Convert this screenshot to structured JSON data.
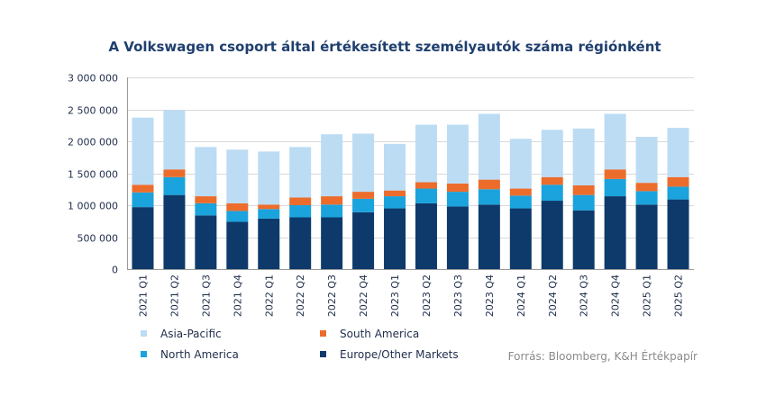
{
  "chart_data": {
    "type": "bar",
    "stacked": true,
    "title": "A Volkswagen csoport által értékesített személyautók száma régiónként",
    "categories": [
      "2021 Q1",
      "2021 Q2",
      "2021 Q3",
      "2021 Q4",
      "2022 Q1",
      "2022 Q2",
      "2022 Q3",
      "2022 Q4",
      "2023 Q1",
      "2023 Q2",
      "2023 Q3",
      "2023 Q4",
      "2024 Q1",
      "2024 Q2",
      "2024 Q3",
      "2024 Q4",
      "2025 Q1",
      "2025 Q2"
    ],
    "yticks": [
      {
        "value": 0,
        "label": "0"
      },
      {
        "value": 500000,
        "label": "500 000"
      },
      {
        "value": 1000000,
        "label": "1 000 000"
      },
      {
        "value": 1500000,
        "label": "1 500 000"
      },
      {
        "value": 2000000,
        "label": "2 000 000"
      },
      {
        "value": 2500000,
        "label": "2 500 000"
      },
      {
        "value": 3000000,
        "label": "3 000 000"
      }
    ],
    "ylim": [
      0,
      3000000
    ],
    "grid": true,
    "series": [
      {
        "name": "Europe/Other Markets",
        "color": "#0d3a6b",
        "values": [
          970000,
          1160000,
          840000,
          740000,
          790000,
          810000,
          810000,
          890000,
          950000,
          1030000,
          980000,
          1010000,
          950000,
          1070000,
          920000,
          1140000,
          1010000,
          1090000
        ]
      },
      {
        "name": "North America",
        "color": "#1aa3dc",
        "values": [
          230000,
          280000,
          190000,
          170000,
          150000,
          190000,
          200000,
          210000,
          190000,
          230000,
          230000,
          240000,
          200000,
          250000,
          240000,
          270000,
          210000,
          200000
        ]
      },
      {
        "name": "South America",
        "color": "#ec6c2c",
        "values": [
          120000,
          120000,
          110000,
          120000,
          70000,
          120000,
          130000,
          110000,
          90000,
          100000,
          130000,
          150000,
          110000,
          120000,
          150000,
          150000,
          130000,
          150000
        ]
      },
      {
        "name": "Asia-Pacific",
        "color": "#bcdcf4",
        "values": [
          1050000,
          930000,
          770000,
          840000,
          830000,
          790000,
          970000,
          910000,
          730000,
          900000,
          920000,
          1030000,
          780000,
          740000,
          890000,
          870000,
          720000,
          770000
        ]
      }
    ],
    "legend": {
      "placement": "bottom",
      "order": [
        "Asia-Pacific",
        "South America",
        "North America",
        "Europe/Other Markets"
      ]
    },
    "source": "Forrás: Bloomberg, K&H Értékpapír"
  }
}
